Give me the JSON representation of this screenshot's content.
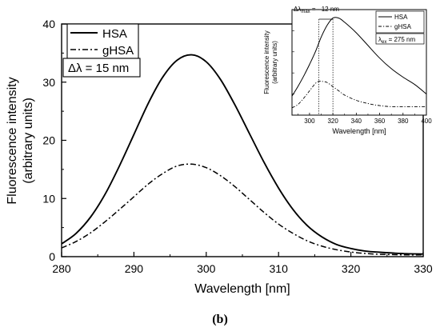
{
  "chart_data": [
    {
      "type": "line",
      "xlabel": "Wavelength [nm]",
      "ylabel": [
        "Fluorescence intensity",
        "(arbitrary units)"
      ],
      "xlim": [
        280,
        330
      ],
      "ylim": [
        0,
        40
      ],
      "xticks": [
        280,
        290,
        300,
        310,
        320,
        330
      ],
      "yticks": [
        0,
        10,
        20,
        30,
        40
      ],
      "grid": false,
      "legend_position": "top-left",
      "series": [
        {
          "name": "HSA",
          "style": "solid",
          "x": [
            280,
            282,
            284,
            286,
            288,
            290,
            292,
            294,
            296,
            298,
            300,
            302,
            304,
            306,
            308,
            310,
            312,
            314,
            316,
            318,
            320,
            322,
            324,
            326,
            328,
            330
          ],
          "y": [
            2.2,
            4.0,
            6.8,
            10.7,
            15.6,
            21.0,
            26.4,
            30.9,
            33.8,
            34.7,
            33.5,
            30.4,
            26.0,
            21.1,
            16.2,
            11.8,
            8.1,
            5.3,
            3.4,
            2.1,
            1.4,
            0.95,
            0.75,
            0.6,
            0.5,
            0.45
          ]
        },
        {
          "name": "gHSA",
          "style": "dash-dot",
          "x": [
            280,
            282,
            284,
            286,
            288,
            290,
            292,
            294,
            296,
            298,
            300,
            302,
            304,
            306,
            308,
            310,
            312,
            314,
            316,
            318,
            320,
            322,
            324,
            326,
            328,
            330
          ],
          "y": [
            1.5,
            2.6,
            4.1,
            6.0,
            8.1,
            10.3,
            12.5,
            14.3,
            15.6,
            15.9,
            15.3,
            13.9,
            12.0,
            9.8,
            7.6,
            5.6,
            4.0,
            2.7,
            1.8,
            1.2,
            0.8,
            0.55,
            0.4,
            0.35,
            0.3,
            0.3
          ]
        }
      ],
      "annotation": "Δλ = 15 nm"
    },
    {
      "type": "line",
      "xlabel": "Wavelength [nm]",
      "ylabel": [
        "Fluorescence intensity",
        "(arbitrary units)"
      ],
      "xlim": [
        285,
        400
      ],
      "xticks": [
        300,
        320,
        340,
        360,
        380,
        400
      ],
      "grid": false,
      "legend_position": "top-right",
      "series": [
        {
          "name": "HSA",
          "style": "solid",
          "x": [
            285,
            290,
            295,
            300,
            305,
            310,
            315,
            320,
            325,
            330,
            340,
            350,
            360,
            370,
            380,
            390,
            400
          ],
          "y": [
            0.18,
            0.27,
            0.37,
            0.48,
            0.6,
            0.74,
            0.85,
            0.92,
            0.92,
            0.88,
            0.78,
            0.66,
            0.54,
            0.44,
            0.36,
            0.29,
            0.2
          ]
        },
        {
          "name": "gHSA",
          "style": "dash-dot",
          "x": [
            285,
            290,
            295,
            300,
            305,
            308,
            311,
            315,
            320,
            325,
            330,
            340,
            350,
            360,
            370,
            380,
            390,
            400
          ],
          "y": [
            0.07,
            0.1,
            0.16,
            0.23,
            0.3,
            0.32,
            0.32,
            0.31,
            0.27,
            0.23,
            0.19,
            0.14,
            0.11,
            0.09,
            0.08,
            0.08,
            0.08,
            0.08
          ]
        }
      ],
      "annotation_prefix": "Δλ",
      "annotation_sub": "max",
      "annotation_suffix": " = - 12 nm",
      "markers_x": [
        308,
        320
      ],
      "excitation_prefix": "λ",
      "excitation_sub": "ex",
      "excitation_suffix": " = 275 nm"
    }
  ],
  "caption": "(b)"
}
